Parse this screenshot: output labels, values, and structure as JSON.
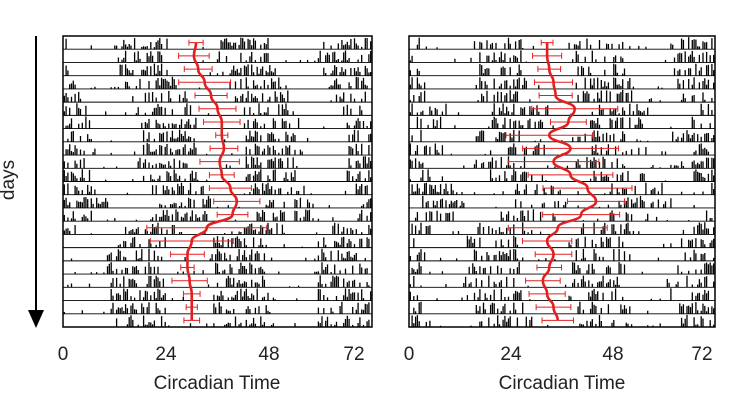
{
  "y_axis_label": "days",
  "chart_data": [
    {
      "type": "actogram",
      "panel": "left",
      "xlabel": "Circadian Time",
      "x_ticks": [
        "0",
        "24",
        "48",
        "72"
      ],
      "xlim": [
        0,
        72
      ],
      "days": 22,
      "line_color": "#e02020",
      "series": [
        {
          "kind": "period_overlay",
          "values_ct": [
            31,
            30.5,
            31.5,
            33,
            34.5,
            36,
            37,
            37,
            37.5,
            36.5,
            37,
            39,
            40.5,
            39.5,
            33.5,
            30,
            29,
            29,
            29.5,
            30,
            30,
            30
          ]
        }
      ]
    },
    {
      "type": "actogram",
      "panel": "right",
      "xlabel": "Circadian Time",
      "x_ticks": [
        "0",
        "24",
        "48",
        "72"
      ],
      "xlim": [
        0,
        72
      ],
      "days": 22,
      "line_color": "#e02020",
      "series": [
        {
          "kind": "period_overlay",
          "values_ct": [
            32.5,
            32.5,
            33,
            34,
            34.5,
            39,
            37.5,
            33,
            38,
            34,
            38,
            42,
            44,
            40.5,
            35,
            32.5,
            34,
            33,
            31.5,
            32.5,
            34,
            35
          ]
        }
      ]
    }
  ]
}
